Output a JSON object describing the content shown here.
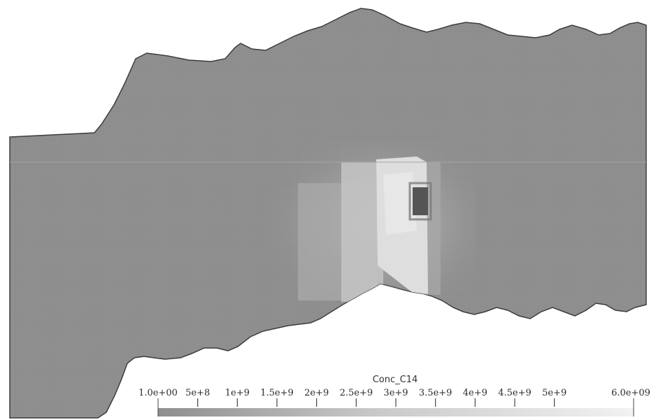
{
  "colorbar": {
    "title": "Conc_C14",
    "min_label": "1.0e+00",
    "max_label": "6.0e+09",
    "range": [
      1,
      6000000000
    ],
    "ticks": [
      {
        "value": 500000000,
        "label": "5e+8"
      },
      {
        "value": 1000000000,
        "label": "1e+9"
      },
      {
        "value": 1500000000,
        "label": "1.5e+9"
      },
      {
        "value": 2000000000,
        "label": "2e+9"
      },
      {
        "value": 2500000000,
        "label": "2.5e+9"
      },
      {
        "value": 3000000000,
        "label": "3e+9"
      },
      {
        "value": 3500000000,
        "label": "3.5e+9"
      },
      {
        "value": 4000000000,
        "label": "4e+9"
      },
      {
        "value": 4500000000,
        "label": "4.5e+9"
      },
      {
        "value": 5000000000,
        "label": "5e+9"
      }
    ],
    "color_low": "#8e8e8e",
    "color_high": "#f2f2f2"
  },
  "colors": {
    "domain_fill": "#8f8f8f",
    "domain_edge": "#3c3c3c",
    "plume_outer": "#a9a9a9",
    "plume_mid": "#c4c4c4",
    "plume_core": "#dedede",
    "cavity": "#555555"
  }
}
